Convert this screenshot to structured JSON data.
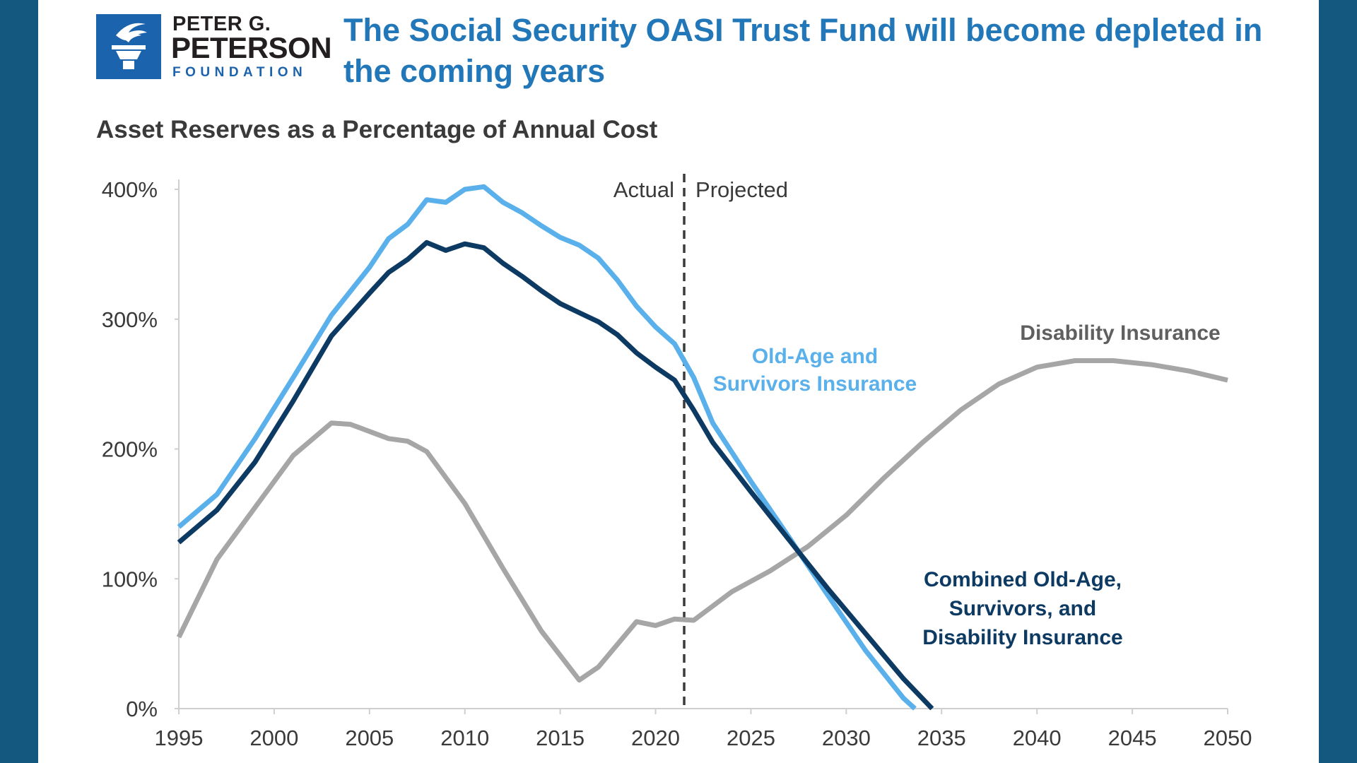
{
  "logo": {
    "line1": "PETER G.",
    "line2": "PETERSON",
    "line3": "FOUNDATION",
    "icon": "torch-icon"
  },
  "title": "The Social Security OASI Trust Fund will become depleted in the coming years",
  "colors": {
    "frame": "#15587f",
    "title": "#2277b8",
    "oasi": "#5ab0ea",
    "combined": "#0d3a63",
    "di": "#a6a6a6"
  },
  "chart_data": {
    "type": "line",
    "title": "Asset Reserves as a Percentage of Annual Cost",
    "xlabel": "",
    "ylabel": "",
    "xlim": [
      1995,
      2050
    ],
    "ylim": [
      0,
      400
    ],
    "x_ticks": [
      "1995",
      "2000",
      "2005",
      "2010",
      "2015",
      "2020",
      "2025",
      "2030",
      "2035",
      "2040",
      "2045",
      "2050"
    ],
    "y_ticks": [
      "0%",
      "100%",
      "200%",
      "300%",
      "400%"
    ],
    "divider": {
      "x": 2021.5,
      "left_label": "Actual",
      "right_label": "Projected"
    },
    "series": [
      {
        "key": "di",
        "name": "Disability Insurance",
        "label_lines": [
          "Disability Insurance"
        ],
        "x": [
          1995,
          1997,
          1999,
          2001,
          2003,
          2004,
          2006,
          2007,
          2008,
          2010,
          2012,
          2014,
          2016,
          2017,
          2019,
          2020,
          2021,
          2022,
          2024,
          2026,
          2028,
          2030,
          2032,
          2034,
          2036,
          2038,
          2040,
          2042,
          2044,
          2046,
          2048,
          2050
        ],
        "values": [
          55,
          115,
          155,
          195,
          220,
          219,
          208,
          206,
          198,
          158,
          108,
          60,
          22,
          32,
          67,
          64,
          69,
          68,
          90,
          106,
          125,
          149,
          178,
          205,
          230,
          250,
          263,
          268,
          268,
          265,
          260,
          253
        ]
      },
      {
        "key": "oasi",
        "name": "Old-Age and Survivors Insurance",
        "label_lines": [
          "Old-Age and",
          "Survivors Insurance"
        ],
        "x": [
          1995,
          1997,
          1999,
          2001,
          2003,
          2005,
          2006,
          2007,
          2008,
          2009,
          2010,
          2011,
          2012,
          2013,
          2014,
          2015,
          2016,
          2017,
          2018,
          2019,
          2020,
          2021,
          2022,
          2023,
          2025,
          2027,
          2029,
          2031,
          2033,
          2033.6
        ],
        "values": [
          140,
          165,
          208,
          255,
          303,
          340,
          362,
          373,
          392,
          390,
          400,
          402,
          390,
          382,
          372,
          363,
          357,
          347,
          330,
          310,
          294,
          281,
          255,
          220,
          175,
          132,
          88,
          45,
          8,
          0
        ]
      },
      {
        "key": "combined",
        "name": "Combined Old-Age, Survivors, and Disability Insurance",
        "label_lines": [
          "Combined Old-Age,",
          "Survivors, and",
          "Disability Insurance"
        ],
        "x": [
          1995,
          1997,
          1999,
          2001,
          2003,
          2005,
          2006,
          2007,
          2008,
          2009,
          2010,
          2011,
          2012,
          2013,
          2014,
          2015,
          2016,
          2017,
          2018,
          2019,
          2020,
          2021,
          2022,
          2023,
          2025,
          2027,
          2029,
          2031,
          2033,
          2034.5
        ],
        "values": [
          128,
          153,
          190,
          237,
          287,
          320,
          336,
          346,
          359,
          353,
          358,
          355,
          343,
          333,
          322,
          312,
          305,
          298,
          288,
          274,
          263,
          253,
          230,
          205,
          167,
          130,
          93,
          58,
          23,
          0
        ]
      }
    ]
  }
}
